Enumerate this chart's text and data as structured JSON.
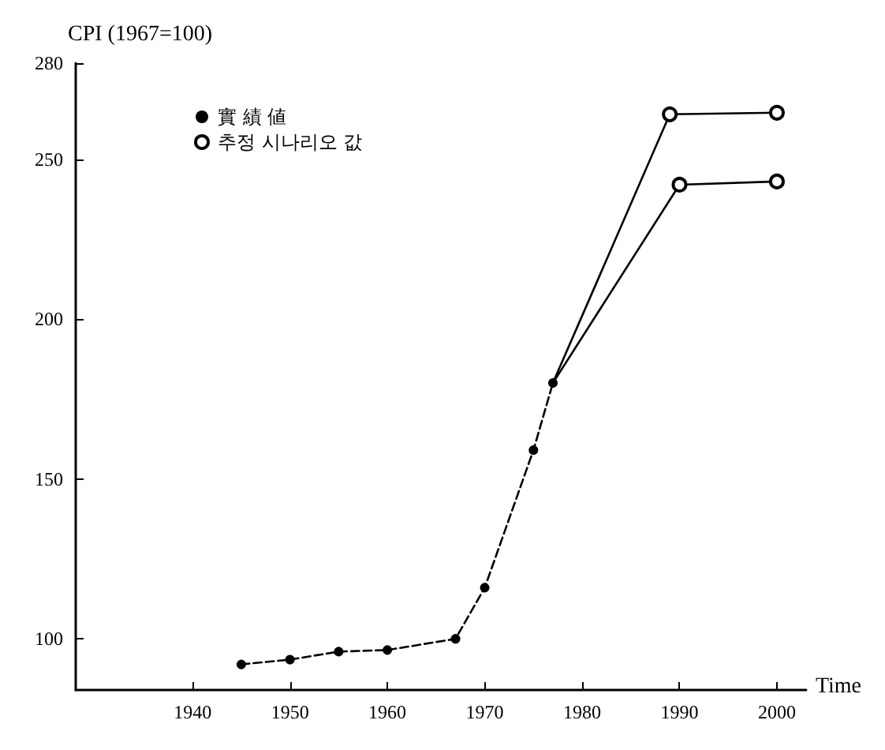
{
  "chart_data": {
    "type": "line",
    "ylabel": "CPI (1967=100)",
    "xlabel": "Time",
    "xlim": [
      1928,
      2003
    ],
    "xticks": [
      1940,
      1950,
      1960,
      1970,
      1980,
      1990,
      2000
    ],
    "ylim": [
      84,
      280
    ],
    "yticks": [
      100,
      150,
      200,
      250,
      280
    ],
    "grid": false,
    "legend": "top left",
    "series": [
      {
        "name": "實 績 値",
        "color": "#000000",
        "marker": "circle",
        "line_style": "dashed",
        "x": [
          1945,
          1950,
          1955,
          1960,
          1967,
          1970,
          1975,
          1977
        ],
        "values": [
          92,
          93.5,
          96,
          96.5,
          100,
          116,
          159,
          180
        ]
      },
      {
        "name": "추정 시나리오 값",
        "color": "#000000",
        "marker": "empty_circle",
        "line_style": "solid",
        "x": [
          1977,
          1989,
          2000
        ],
        "values": [
          180,
          264,
          264.5
        ]
      },
      {
        "color": "#000000",
        "marker": "empty_circle",
        "line_style": "solid",
        "x": [
          1977,
          1990,
          2000
        ],
        "values": [
          180,
          242,
          243
        ]
      }
    ]
  }
}
